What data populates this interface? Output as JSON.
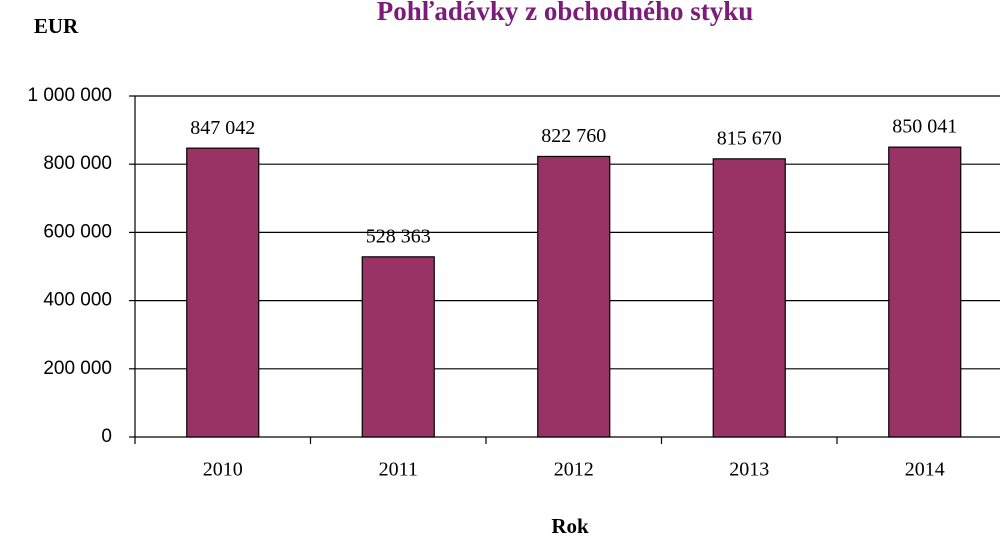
{
  "chart_data": {
    "type": "bar",
    "title": "Pohľadávky z obchodného styku",
    "y_label": "EUR",
    "x_label": "Rok",
    "categories": [
      "2010",
      "2011",
      "2012",
      "2013",
      "2014"
    ],
    "values": [
      847042,
      528363,
      822760,
      815670,
      850041
    ],
    "value_labels": [
      "847 042",
      "528 363",
      "822 760",
      "815 670",
      "850 041"
    ],
    "color": "#993366",
    "ylim": [
      0,
      1000000
    ],
    "yticks": [
      0,
      {
        "value": 200000,
        "label": "200 000"
      },
      {
        "value": 400000,
        "label": "400 000"
      },
      {
        "value": 600000,
        "label": "600 000"
      },
      {
        "value": 800000,
        "label": "800 000"
      },
      {
        "value": 1000000,
        "label": "1 000 000"
      }
    ],
    "grid": true
  }
}
